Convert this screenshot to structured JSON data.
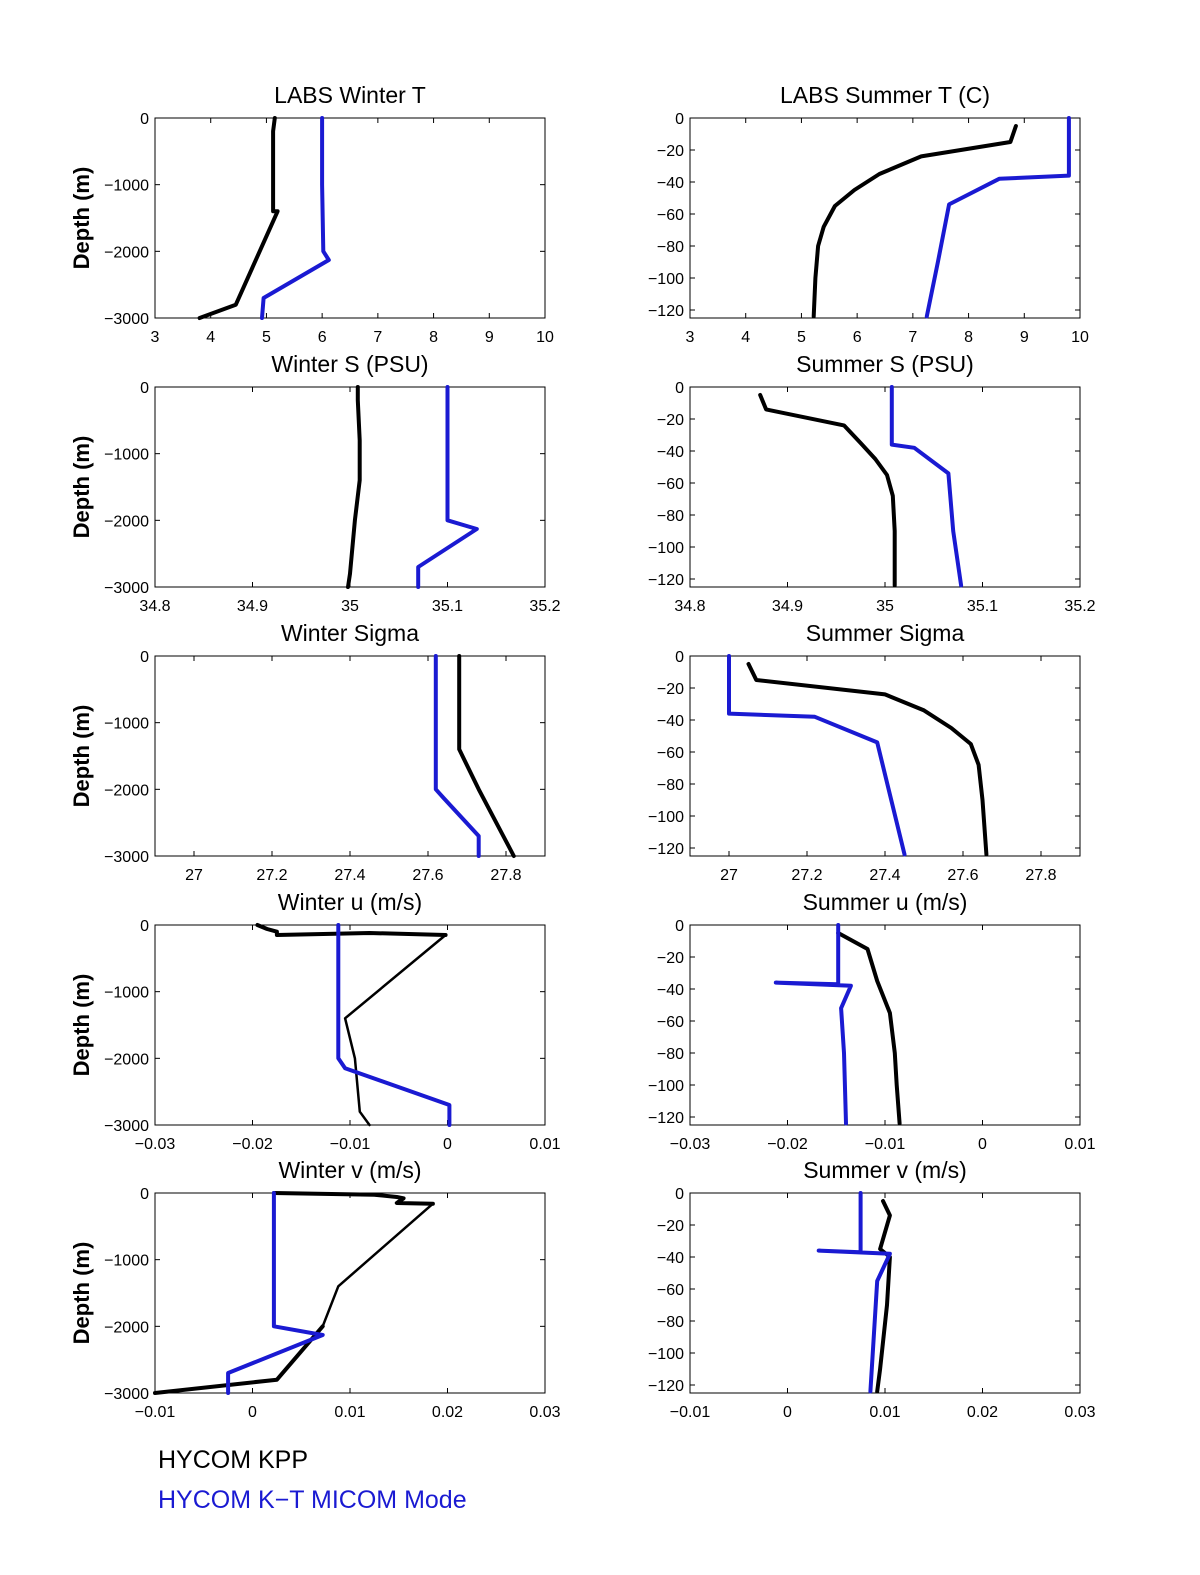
{
  "colors": {
    "hycom_kpp": "#000000",
    "hycom_kt_micom": "#1a1ad2"
  },
  "legend": [
    {
      "label": "HYCOM KPP",
      "color": "#000000"
    },
    {
      "label": "HYCOM K−T MICOM Mode",
      "color": "#1a1ad2"
    }
  ],
  "chart_data": [
    {
      "type": "line",
      "title": "LABS Winter T",
      "xlabel": "",
      "ylabel": "Depth (m)",
      "xlim": [
        3,
        10
      ],
      "ylim": [
        -3000,
        0
      ],
      "xticks": [
        3,
        4,
        5,
        6,
        7,
        8,
        9,
        10
      ],
      "xtick_labels": [
        "3",
        "4",
        "5",
        "6",
        "7",
        "8",
        "9",
        "10"
      ],
      "yticks": [
        0,
        -1000,
        -2000,
        -3000
      ],
      "ytick_labels": [
        "0",
        "−1000",
        "−2000",
        "−3000"
      ],
      "series": [
        {
          "name": "HYCOM KPP",
          "color": "#000000",
          "width": 4,
          "x": [
            5.15,
            5.12,
            5.12,
            5.2,
            4.45,
            3.8
          ],
          "y": [
            0,
            -200,
            -1400,
            -1400,
            -2800,
            -3000
          ]
        },
        {
          "name": "HYCOM K−T MICOM Mode",
          "color": "#1a1ad2",
          "width": 4,
          "x": [
            6.0,
            6.0,
            6.02,
            6.12,
            4.95,
            4.92
          ],
          "y": [
            0,
            -1000,
            -2000,
            -2130,
            -2700,
            -3000
          ]
        }
      ]
    },
    {
      "type": "line",
      "title": "LABS Summer T (C)",
      "xlabel": "",
      "ylabel": "",
      "xlim": [
        3,
        10
      ],
      "ylim": [
        -125,
        0
      ],
      "xticks": [
        3,
        4,
        5,
        6,
        7,
        8,
        9,
        10
      ],
      "xtick_labels": [
        "3",
        "4",
        "5",
        "6",
        "7",
        "8",
        "9",
        "10"
      ],
      "yticks": [
        0,
        -20,
        -40,
        -60,
        -80,
        -100,
        -120
      ],
      "ytick_labels": [
        "0",
        "−20",
        "−40",
        "−60",
        "−80",
        "−100",
        "−120"
      ],
      "series": [
        {
          "name": "HYCOM KPP",
          "color": "#000000",
          "width": 4,
          "x": [
            8.85,
            8.75,
            7.15,
            6.4,
            5.95,
            5.6,
            5.4,
            5.3,
            5.25,
            5.22
          ],
          "y": [
            -5,
            -15,
            -24,
            -35,
            -45,
            -55,
            -68,
            -80,
            -100,
            -124
          ]
        },
        {
          "name": "HYCOM K−T MICOM Mode",
          "color": "#1a1ad2",
          "width": 4,
          "x": [
            9.8,
            9.8,
            8.55,
            7.65,
            7.45,
            7.25
          ],
          "y": [
            0,
            -36,
            -38,
            -54,
            -90,
            -124
          ]
        }
      ]
    },
    {
      "type": "line",
      "title": "Winter S (PSU)",
      "xlabel": "",
      "ylabel": "Depth (m)",
      "xlim": [
        34.8,
        35.2
      ],
      "ylim": [
        -3000,
        0
      ],
      "xticks": [
        34.8,
        34.9,
        35,
        35.1,
        35.2
      ],
      "xtick_labels": [
        "34.8",
        "34.9",
        "35",
        "35.1",
        "35.2"
      ],
      "yticks": [
        0,
        -1000,
        -2000,
        -3000
      ],
      "ytick_labels": [
        "0",
        "−1000",
        "−2000",
        "−3000"
      ],
      "series": [
        {
          "name": "HYCOM KPP",
          "color": "#000000",
          "width": 4,
          "x": [
            35.008,
            35.008,
            35.01,
            35.01,
            35.005,
            35.0,
            34.998
          ],
          "y": [
            0,
            -200,
            -800,
            -1400,
            -2000,
            -2800,
            -3000
          ]
        },
        {
          "name": "HYCOM K−T MICOM Mode",
          "color": "#1a1ad2",
          "width": 4,
          "x": [
            35.1,
            35.1,
            35.1,
            35.13,
            35.07,
            35.07
          ],
          "y": [
            0,
            -1000,
            -2000,
            -2130,
            -2700,
            -3000
          ]
        }
      ]
    },
    {
      "type": "line",
      "title": "Summer S (PSU)",
      "xlabel": "",
      "ylabel": "",
      "xlim": [
        34.8,
        35.2
      ],
      "ylim": [
        -125,
        0
      ],
      "xticks": [
        34.8,
        34.9,
        35,
        35.1,
        35.2
      ],
      "xtick_labels": [
        "34.8",
        "34.9",
        "35",
        "35.1",
        "35.2"
      ],
      "yticks": [
        0,
        -20,
        -40,
        -60,
        -80,
        -100,
        -120
      ],
      "ytick_labels": [
        "0",
        "−20",
        "−40",
        "−60",
        "−80",
        "−100",
        "−120"
      ],
      "series": [
        {
          "name": "HYCOM KPP",
          "color": "#000000",
          "width": 4,
          "x": [
            34.872,
            34.878,
            34.958,
            34.975,
            34.99,
            35.002,
            35.008,
            35.01,
            35.01
          ],
          "y": [
            -5,
            -14,
            -24,
            -35,
            -45,
            -55,
            -68,
            -90,
            -124
          ]
        },
        {
          "name": "HYCOM K−T MICOM Mode",
          "color": "#1a1ad2",
          "width": 4,
          "x": [
            35.007,
            35.007,
            35.03,
            35.065,
            35.07,
            35.078
          ],
          "y": [
            0,
            -36,
            -38,
            -54,
            -90,
            -124
          ]
        }
      ]
    },
    {
      "type": "line",
      "title": "Winter Sigma",
      "xlabel": "",
      "ylabel": "Depth (m)",
      "xlim": [
        26.9,
        27.9
      ],
      "ylim": [
        -3000,
        0
      ],
      "xticks": [
        27,
        27.2,
        27.4,
        27.6,
        27.8
      ],
      "xtick_labels": [
        "27",
        "27.2",
        "27.4",
        "27.6",
        "27.8"
      ],
      "yticks": [
        0,
        -1000,
        -2000,
        -3000
      ],
      "ytick_labels": [
        "0",
        "−1000",
        "−2000",
        "−3000"
      ],
      "series": [
        {
          "name": "HYCOM KPP",
          "color": "#000000",
          "width": 4,
          "x": [
            27.68,
            27.68,
            27.68,
            27.73,
            27.82
          ],
          "y": [
            0,
            -200,
            -1400,
            -2000,
            -3000
          ]
        },
        {
          "name": "HYCOM K−T MICOM Mode",
          "color": "#1a1ad2",
          "width": 4,
          "x": [
            27.62,
            27.62,
            27.62,
            27.64,
            27.73,
            27.73
          ],
          "y": [
            0,
            -1000,
            -2000,
            -2130,
            -2700,
            -3000
          ]
        }
      ]
    },
    {
      "type": "line",
      "title": "Summer Sigma",
      "xlabel": "",
      "ylabel": "",
      "xlim": [
        26.9,
        27.9
      ],
      "ylim": [
        -125,
        0
      ],
      "xticks": [
        27,
        27.2,
        27.4,
        27.6,
        27.8
      ],
      "xtick_labels": [
        "27",
        "27.2",
        "27.4",
        "27.6",
        "27.8"
      ],
      "yticks": [
        0,
        -20,
        -40,
        -60,
        -80,
        -100,
        -120
      ],
      "ytick_labels": [
        "0",
        "−20",
        "−40",
        "−60",
        "−80",
        "−100",
        "−120"
      ],
      "series": [
        {
          "name": "HYCOM KPP",
          "color": "#000000",
          "width": 4,
          "x": [
            27.05,
            27.07,
            27.4,
            27.5,
            27.57,
            27.62,
            27.64,
            27.65,
            27.66
          ],
          "y": [
            -5,
            -15,
            -24,
            -34,
            -45,
            -55,
            -68,
            -90,
            -124
          ]
        },
        {
          "name": "HYCOM K−T MICOM Mode",
          "color": "#1a1ad2",
          "width": 4,
          "x": [
            27.0,
            27.0,
            27.22,
            27.38,
            27.45
          ],
          "y": [
            0,
            -36,
            -38,
            -54,
            -124
          ]
        }
      ]
    },
    {
      "type": "line",
      "title": "Winter u (m/s)",
      "xlabel": "",
      "ylabel": "Depth (m)",
      "xlim": [
        -0.03,
        0.01
      ],
      "ylim": [
        -3000,
        0
      ],
      "xticks": [
        -0.03,
        -0.02,
        -0.01,
        0,
        0.01
      ],
      "xtick_labels": [
        "−0.03",
        "−0.02",
        "−0.01",
        "0",
        "0.01"
      ],
      "yticks": [
        0,
        -1000,
        -2000,
        -3000
      ],
      "ytick_labels": [
        "0",
        "−1000",
        "−2000",
        "−3000"
      ],
      "series": [
        {
          "name": "HYCOM KPP",
          "color": "#000000",
          "width": 4,
          "x": [
            -0.0195,
            -0.0185,
            -0.0175,
            -0.0175,
            -0.008,
            -0.0002
          ],
          "y": [
            0,
            -60,
            -100,
            -150,
            -120,
            -150
          ]
        },
        {
          "name": "HYCOM KPP",
          "color": "#000000",
          "width": 2.5,
          "x": [
            -0.0002,
            -0.0105,
            -0.0095,
            -0.009,
            -0.008
          ],
          "y": [
            -150,
            -1400,
            -2000,
            -2800,
            -3000
          ]
        },
        {
          "name": "HYCOM K−T MICOM Mode",
          "color": "#1a1ad2",
          "width": 4,
          "x": [
            -0.0112,
            -0.0112,
            -0.0112,
            -0.0105,
            0.0002,
            0.0002
          ],
          "y": [
            0,
            -1000,
            -2000,
            -2150,
            -2700,
            -3000
          ]
        }
      ]
    },
    {
      "type": "line",
      "title": "Summer u (m/s)",
      "xlabel": "",
      "ylabel": "",
      "xlim": [
        -0.03,
        0.01
      ],
      "ylim": [
        -125,
        0
      ],
      "xticks": [
        -0.03,
        -0.02,
        -0.01,
        0,
        0.01
      ],
      "xtick_labels": [
        "−0.03",
        "−0.02",
        "−0.01",
        "0",
        "0.01"
      ],
      "yticks": [
        0,
        -20,
        -40,
        -60,
        -80,
        -100,
        -120
      ],
      "ytick_labels": [
        "0",
        "−20",
        "−40",
        "−60",
        "−80",
        "−100",
        "−120"
      ],
      "series": [
        {
          "name": "HYCOM KPP",
          "color": "#000000",
          "width": 4,
          "x": [
            -0.0148,
            -0.0118,
            -0.0108,
            -0.0095,
            -0.009,
            -0.0088,
            -0.0085
          ],
          "y": [
            -5,
            -15,
            -35,
            -55,
            -80,
            -100,
            -124
          ]
        },
        {
          "name": "HYCOM K−T MICOM Mode",
          "color": "#1a1ad2",
          "width": 4,
          "x": [
            -0.0148,
            -0.0148,
            -0.0212,
            -0.0135,
            -0.0145,
            -0.0142,
            -0.014
          ],
          "y": [
            0,
            -37,
            -36,
            -38,
            -52,
            -80,
            -124
          ]
        }
      ]
    },
    {
      "type": "line",
      "title": "Winter v (m/s)",
      "xlabel": "",
      "ylabel": "Depth (m)",
      "xlim": [
        -0.01,
        0.03
      ],
      "ylim": [
        -3000,
        0
      ],
      "xticks": [
        -0.01,
        0,
        0.01,
        0.02,
        0.03
      ],
      "xtick_labels": [
        "−0.01",
        "0",
        "0.01",
        "0.02",
        "0.03"
      ],
      "yticks": [
        0,
        -1000,
        -2000,
        -3000
      ],
      "ytick_labels": [
        "0",
        "−1000",
        "−2000",
        "−3000"
      ],
      "series": [
        {
          "name": "HYCOM KPP",
          "color": "#000000",
          "width": 4,
          "x": [
            0.0022,
            0.0125,
            0.0148,
            0.0155,
            0.0148,
            0.0185
          ],
          "y": [
            0,
            -25,
            -60,
            -80,
            -150,
            -160
          ]
        },
        {
          "name": "HYCOM KPP",
          "color": "#000000",
          "width": 2.5,
          "x": [
            0.0185,
            0.0088,
            0.0072
          ],
          "y": [
            -160,
            -1400,
            -2000
          ]
        },
        {
          "name": "HYCOM KPP",
          "color": "#000000",
          "width": 4,
          "x": [
            0.0072,
            0.0025,
            -0.01
          ],
          "y": [
            -2000,
            -2800,
            -3000
          ]
        },
        {
          "name": "HYCOM K−T MICOM Mode",
          "color": "#1a1ad2",
          "width": 4,
          "x": [
            0.0022,
            0.0022,
            0.0022,
            0.0072,
            -0.0025,
            -0.0025
          ],
          "y": [
            0,
            -1000,
            -2000,
            -2130,
            -2700,
            -3000
          ]
        }
      ]
    },
    {
      "type": "line",
      "title": "Summer v (m/s)",
      "xlabel": "",
      "ylabel": "",
      "xlim": [
        -0.01,
        0.03
      ],
      "ylim": [
        -125,
        0
      ],
      "xticks": [
        -0.01,
        0,
        0.01,
        0.02,
        0.03
      ],
      "xtick_labels": [
        "−0.01",
        "0",
        "0.01",
        "0.02",
        "0.03"
      ],
      "yticks": [
        0,
        -20,
        -40,
        -60,
        -80,
        -100,
        -120
      ],
      "ytick_labels": [
        "0",
        "−20",
        "−40",
        "−60",
        "−80",
        "−100",
        "−120"
      ],
      "series": [
        {
          "name": "HYCOM KPP",
          "color": "#000000",
          "width": 4,
          "x": [
            0.0098,
            0.0105,
            0.0095,
            0.0105,
            0.0102,
            0.0095,
            0.0092
          ],
          "y": [
            -5,
            -14,
            -35,
            -40,
            -70,
            -110,
            -124
          ]
        },
        {
          "name": "HYCOM K−T MICOM Mode",
          "color": "#1a1ad2",
          "width": 4,
          "x": [
            0.0075,
            0.0075,
            0.0032,
            0.0105,
            0.0092,
            0.0085
          ],
          "y": [
            0,
            -37,
            -36,
            -38,
            -55,
            -124
          ]
        }
      ]
    }
  ]
}
